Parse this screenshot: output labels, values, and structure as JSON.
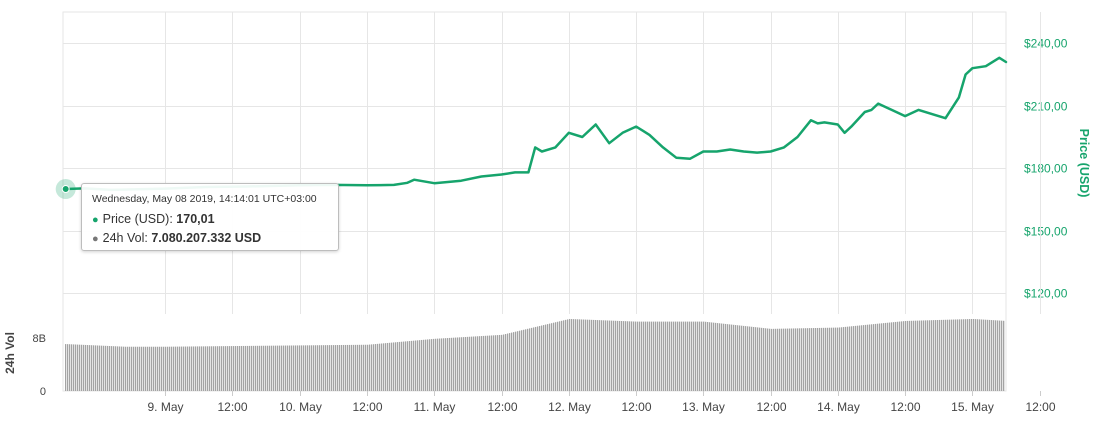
{
  "colors": {
    "price_line": "#16a46c",
    "price_axis_text": "#16a46c",
    "volume_bars": "#a3a3a3",
    "axis_text": "#444444",
    "grid": "#e6e6e6",
    "tooltip_price_dot": "#16a46c",
    "tooltip_volume_dot": "#777777"
  },
  "tooltip": {
    "date": "Wednesday, May 08 2019, 14:14:01 UTC+03:00",
    "price_label": "Price (USD):",
    "price_value": "170,01",
    "volume_label": "24h Vol:",
    "volume_value": "7.080.207.332 USD"
  },
  "chart_data": [
    {
      "type": "line",
      "ylabel": "Price (USD)",
      "yaxis_side": "right",
      "ylim": [
        110,
        255
      ],
      "yticks": [
        120,
        150,
        180,
        210,
        240
      ],
      "ytick_labels": [
        "$120,00",
        "$150,00",
        "$180,00",
        "$210,00",
        "$240,00"
      ],
      "xlim": [
        -0.76,
        6.25
      ],
      "xticks": [
        0,
        0.5,
        1,
        1.5,
        2,
        2.5,
        3,
        3.5,
        4,
        4.5,
        5,
        5.5,
        6,
        6.5
      ],
      "xtick_labels": [
        "9. May",
        "12:00",
        "10. May",
        "12:00",
        "11. May",
        "12:00",
        "12. May",
        "12:00",
        "13. May",
        "12:00",
        "14. May",
        "12:00",
        "15. May",
        "12:00"
      ],
      "grid": true,
      "series": [
        {
          "name": "Price (USD)",
          "x": [
            -0.74,
            -0.6,
            -0.4,
            -0.2,
            0,
            0.3,
            0.6,
            1,
            1.25,
            1.5,
            1.7,
            1.8,
            1.85,
            2.0,
            2.2,
            2.35,
            2.5,
            2.6,
            2.7,
            2.75,
            2.8,
            2.9,
            3.0,
            3.1,
            3.2,
            3.3,
            3.4,
            3.5,
            3.55,
            3.6,
            3.7,
            3.8,
            3.9,
            4.0,
            4.1,
            4.2,
            4.3,
            4.4,
            4.5,
            4.6,
            4.7,
            4.8,
            4.85,
            4.9,
            5.0,
            5.05,
            5.1,
            5.2,
            5.25,
            5.3,
            5.4,
            5.5,
            5.6,
            5.7,
            5.8,
            5.9,
            5.95,
            6.0,
            6.1,
            6.2,
            6.25
          ],
          "values": [
            170.0,
            170.3,
            169.6,
            169.9,
            170.2,
            171.0,
            171.2,
            171.8,
            172.0,
            171.8,
            172.0,
            173.0,
            174.5,
            172.8,
            174.0,
            176.0,
            177.0,
            178.0,
            178.0,
            190.0,
            188.0,
            190.0,
            197.0,
            195.0,
            201.0,
            192.0,
            197.0,
            200.0,
            198.0,
            196.0,
            190.0,
            185.0,
            184.5,
            188.0,
            188.0,
            189.0,
            188.0,
            187.5,
            188.0,
            190.0,
            195.0,
            203.0,
            201.5,
            202.0,
            201.0,
            197.0,
            200.0,
            207.0,
            208.0,
            211.0,
            208.0,
            205.0,
            208.0,
            206.0,
            204.0,
            214.0,
            225.0,
            228.0,
            229.0,
            233.0,
            231.0
          ]
        }
      ]
    },
    {
      "type": "bar",
      "ylabel": "24h Vol",
      "ylim": [
        0,
        11.5
      ],
      "yticks": [
        0,
        8
      ],
      "ytick_labels": [
        "0",
        "8B"
      ],
      "grid": false,
      "x": [
        -0.74,
        -0.3,
        0,
        0.5,
        1,
        1.5,
        2,
        2.5,
        3,
        3.5,
        4,
        4.5,
        5,
        5.5,
        6,
        6.25
      ],
      "series": [
        {
          "name": "24h Vol",
          "values": [
            7.1,
            6.7,
            6.7,
            6.8,
            6.9,
            7.0,
            7.9,
            8.5,
            10.9,
            10.5,
            10.5,
            9.4,
            9.6,
            10.6,
            10.9,
            10.6
          ]
        }
      ]
    }
  ]
}
